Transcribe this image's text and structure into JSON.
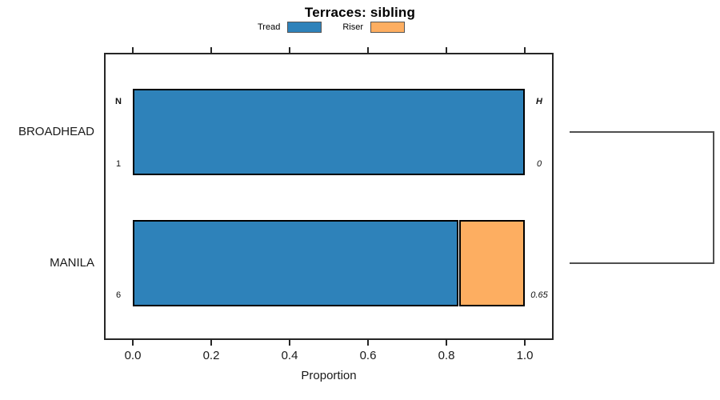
{
  "title": "Terraces: sibling",
  "legend": {
    "items": [
      {
        "label": "Tread",
        "color": "#2e82ba"
      },
      {
        "label": "Riser",
        "color": "#fdae61"
      }
    ]
  },
  "colors": {
    "tread": "#2e82ba",
    "riser": "#fdae61",
    "bar_border": "#000000",
    "axis": "#262626",
    "dendrogram_line": "#4f4f4f"
  },
  "chart_data": {
    "type": "bar",
    "orientation": "horizontal",
    "stacked": true,
    "title": "Terraces: sibling",
    "categories": [
      "BROADHEAD",
      "MANILA"
    ],
    "series": [
      {
        "name": "Tread",
        "color": "#2e82ba",
        "values": [
          1.0,
          0.83
        ]
      },
      {
        "name": "Riser",
        "color": "#fdae61",
        "values": [
          0.0,
          0.17
        ]
      }
    ],
    "annotations": {
      "left_header": "N",
      "right_header": "H",
      "left_values": [
        "1",
        "6"
      ],
      "right_values": [
        "0",
        "0.65"
      ]
    },
    "xlabel": "Proportion",
    "xlim": [
      0,
      1
    ],
    "x_ticks": [
      0.0,
      0.2,
      0.4,
      0.6,
      0.8,
      1.0
    ],
    "x_tick_labels": [
      "0.0",
      "0.2",
      "0.4",
      "0.6",
      "0.8",
      "1.0"
    ],
    "legend_position": "top-center",
    "grid": false,
    "dendrogram": {
      "side": "right",
      "joins": [
        {
          "members": [
            "BROADHEAD",
            "MANILA"
          ]
        }
      ]
    }
  }
}
